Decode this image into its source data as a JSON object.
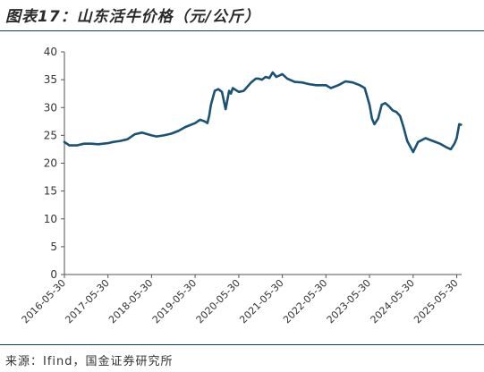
{
  "title": "图表17：山东活牛价格（元/公斤）",
  "source": "来源：Ifind，国金证券研究所",
  "colors": {
    "line": "#1a5276",
    "rule": "#0f3a63",
    "axis": "#555555"
  },
  "chart_data": {
    "type": "line",
    "title": "图表17：山东活牛价格（元/公斤）",
    "xlabel": "",
    "ylabel": "",
    "ylim": [
      0,
      40
    ],
    "yticks": [
      0,
      5,
      10,
      15,
      20,
      25,
      30,
      35,
      40
    ],
    "xlim": [
      "2016-05-30",
      "2025-07-10"
    ],
    "xticks": [
      "2016-05-30",
      "2017-05-30",
      "2018-05-30",
      "2019-05-30",
      "2020-05-30",
      "2021-05-30",
      "2022-05-30",
      "2023-05-30",
      "2024-05-30",
      "2025-05-30"
    ],
    "grid": false,
    "legend": "none",
    "series": [
      {
        "name": "",
        "x": [
          "2016-05-30",
          "2016-07-10",
          "2016-09-10",
          "2016-11-10",
          "2017-01-10",
          "2017-03-10",
          "2017-05-30",
          "2017-07-10",
          "2017-09-10",
          "2017-11-10",
          "2018-01-10",
          "2018-03-10",
          "2018-05-30",
          "2018-07-10",
          "2018-09-10",
          "2018-11-10",
          "2019-01-10",
          "2019-03-10",
          "2019-05-30",
          "2019-07-10",
          "2019-08-20",
          "2019-09-10",
          "2019-09-25",
          "2019-10-10",
          "2019-11-10",
          "2019-12-10",
          "2020-01-10",
          "2020-02-10",
          "2020-03-10",
          "2020-03-25",
          "2020-04-10",
          "2020-05-30",
          "2020-07-10",
          "2020-09-10",
          "2020-10-20",
          "2020-11-10",
          "2020-12-10",
          "2021-01-10",
          "2021-02-10",
          "2021-03-10",
          "2021-04-10",
          "2021-05-30",
          "2021-07-10",
          "2021-09-10",
          "2021-11-10",
          "2022-01-10",
          "2022-03-10",
          "2022-05-30",
          "2022-07-10",
          "2022-09-10",
          "2022-11-10",
          "2023-01-10",
          "2023-03-10",
          "2023-04-20",
          "2023-05-30",
          "2023-06-20",
          "2023-07-10",
          "2023-08-10",
          "2023-09-10",
          "2023-10-10",
          "2023-11-10",
          "2023-12-10",
          "2024-01-10",
          "2024-02-10",
          "2024-03-10",
          "2024-04-10",
          "2024-05-10",
          "2024-05-30",
          "2024-07-10",
          "2024-09-10",
          "2024-11-10",
          "2025-01-10",
          "2025-03-10",
          "2025-04-10",
          "2025-05-10",
          "2025-05-30",
          "2025-06-20",
          "2025-07-05"
        ],
        "values": [
          23.8,
          23.2,
          23.2,
          23.5,
          23.5,
          23.4,
          23.6,
          23.8,
          24.0,
          24.3,
          25.2,
          25.5,
          25.0,
          24.8,
          25.0,
          25.3,
          25.8,
          26.5,
          27.2,
          27.8,
          27.5,
          27.2,
          28.5,
          30.5,
          33.0,
          33.3,
          32.8,
          29.7,
          33.0,
          32.5,
          33.5,
          32.8,
          33.0,
          34.5,
          35.2,
          35.2,
          35.0,
          35.5,
          35.3,
          36.3,
          35.5,
          36.0,
          35.2,
          34.6,
          34.5,
          34.2,
          34.0,
          34.0,
          33.5,
          34.0,
          34.7,
          34.5,
          34.0,
          33.5,
          30.5,
          28.0,
          27.0,
          28.0,
          30.5,
          30.8,
          30.2,
          29.5,
          29.2,
          28.5,
          26.5,
          24.0,
          22.8,
          22.0,
          23.8,
          24.5,
          24.0,
          23.5,
          22.8,
          22.5,
          23.5,
          24.5,
          27.0,
          26.9
        ]
      }
    ]
  }
}
